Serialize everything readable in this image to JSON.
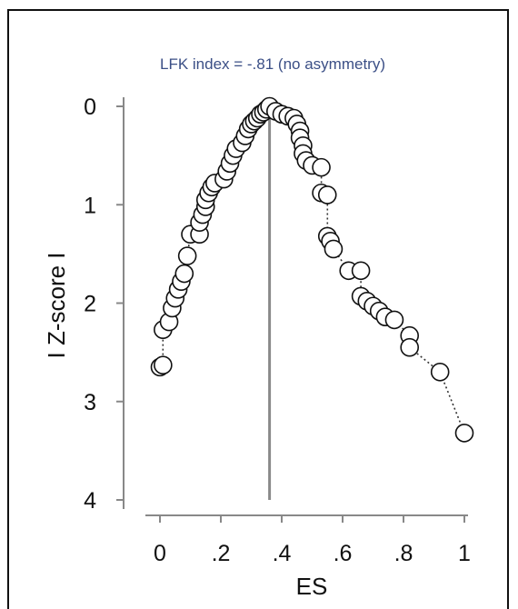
{
  "chart_data": {
    "type": "scatter",
    "title": "LFK index = -.81 (no asymmetry)",
    "xlabel": "ES",
    "ylabel": "I Z-score I",
    "xlim": [
      0,
      1
    ],
    "ylim": [
      0,
      4
    ],
    "y_inverted": true,
    "x_ticks": [
      0,
      0.2,
      0.4,
      0.6,
      0.8,
      1.0
    ],
    "x_tick_labels": [
      "0",
      ".2",
      ".4",
      ".6",
      ".8",
      "1"
    ],
    "y_ticks": [
      0,
      1,
      2,
      3,
      4
    ],
    "y_tick_labels": [
      "0",
      "1",
      "2",
      "3",
      "4"
    ],
    "reference_line_x": 0.36,
    "connect_points": "dotted",
    "points": [
      {
        "x": 0.0,
        "y": 2.65
      },
      {
        "x": 0.01,
        "y": 2.63
      },
      {
        "x": 0.01,
        "y": 2.27
      },
      {
        "x": 0.03,
        "y": 2.19
      },
      {
        "x": 0.04,
        "y": 2.05
      },
      {
        "x": 0.05,
        "y": 1.95
      },
      {
        "x": 0.06,
        "y": 1.86
      },
      {
        "x": 0.07,
        "y": 1.78
      },
      {
        "x": 0.08,
        "y": 1.7
      },
      {
        "x": 0.09,
        "y": 1.52
      },
      {
        "x": 0.1,
        "y": 1.3
      },
      {
        "x": 0.13,
        "y": 1.3
      },
      {
        "x": 0.13,
        "y": 1.18
      },
      {
        "x": 0.14,
        "y": 1.1
      },
      {
        "x": 0.15,
        "y": 1.02
      },
      {
        "x": 0.15,
        "y": 0.95
      },
      {
        "x": 0.16,
        "y": 0.88
      },
      {
        "x": 0.17,
        "y": 0.82
      },
      {
        "x": 0.18,
        "y": 0.78
      },
      {
        "x": 0.21,
        "y": 0.74
      },
      {
        "x": 0.22,
        "y": 0.66
      },
      {
        "x": 0.23,
        "y": 0.58
      },
      {
        "x": 0.24,
        "y": 0.5
      },
      {
        "x": 0.25,
        "y": 0.43
      },
      {
        "x": 0.27,
        "y": 0.37
      },
      {
        "x": 0.28,
        "y": 0.3
      },
      {
        "x": 0.29,
        "y": 0.23
      },
      {
        "x": 0.3,
        "y": 0.18
      },
      {
        "x": 0.31,
        "y": 0.15
      },
      {
        "x": 0.32,
        "y": 0.12
      },
      {
        "x": 0.33,
        "y": 0.08
      },
      {
        "x": 0.34,
        "y": 0.06
      },
      {
        "x": 0.35,
        "y": 0.03
      },
      {
        "x": 0.36,
        "y": 0.0
      },
      {
        "x": 0.38,
        "y": 0.05
      },
      {
        "x": 0.4,
        "y": 0.08
      },
      {
        "x": 0.42,
        "y": 0.1
      },
      {
        "x": 0.44,
        "y": 0.12
      },
      {
        "x": 0.45,
        "y": 0.18
      },
      {
        "x": 0.46,
        "y": 0.25
      },
      {
        "x": 0.46,
        "y": 0.32
      },
      {
        "x": 0.47,
        "y": 0.4
      },
      {
        "x": 0.47,
        "y": 0.48
      },
      {
        "x": 0.48,
        "y": 0.55
      },
      {
        "x": 0.5,
        "y": 0.6
      },
      {
        "x": 0.53,
        "y": 0.62
      },
      {
        "x": 0.53,
        "y": 0.88
      },
      {
        "x": 0.55,
        "y": 0.9
      },
      {
        "x": 0.55,
        "y": 1.32
      },
      {
        "x": 0.56,
        "y": 1.37
      },
      {
        "x": 0.57,
        "y": 1.45
      },
      {
        "x": 0.62,
        "y": 1.67
      },
      {
        "x": 0.66,
        "y": 1.67
      },
      {
        "x": 0.66,
        "y": 1.93
      },
      {
        "x": 0.68,
        "y": 1.98
      },
      {
        "x": 0.7,
        "y": 2.03
      },
      {
        "x": 0.72,
        "y": 2.08
      },
      {
        "x": 0.74,
        "y": 2.14
      },
      {
        "x": 0.77,
        "y": 2.17
      },
      {
        "x": 0.82,
        "y": 2.33
      },
      {
        "x": 0.82,
        "y": 2.45
      },
      {
        "x": 0.92,
        "y": 2.7
      },
      {
        "x": 1.0,
        "y": 3.32
      }
    ]
  }
}
